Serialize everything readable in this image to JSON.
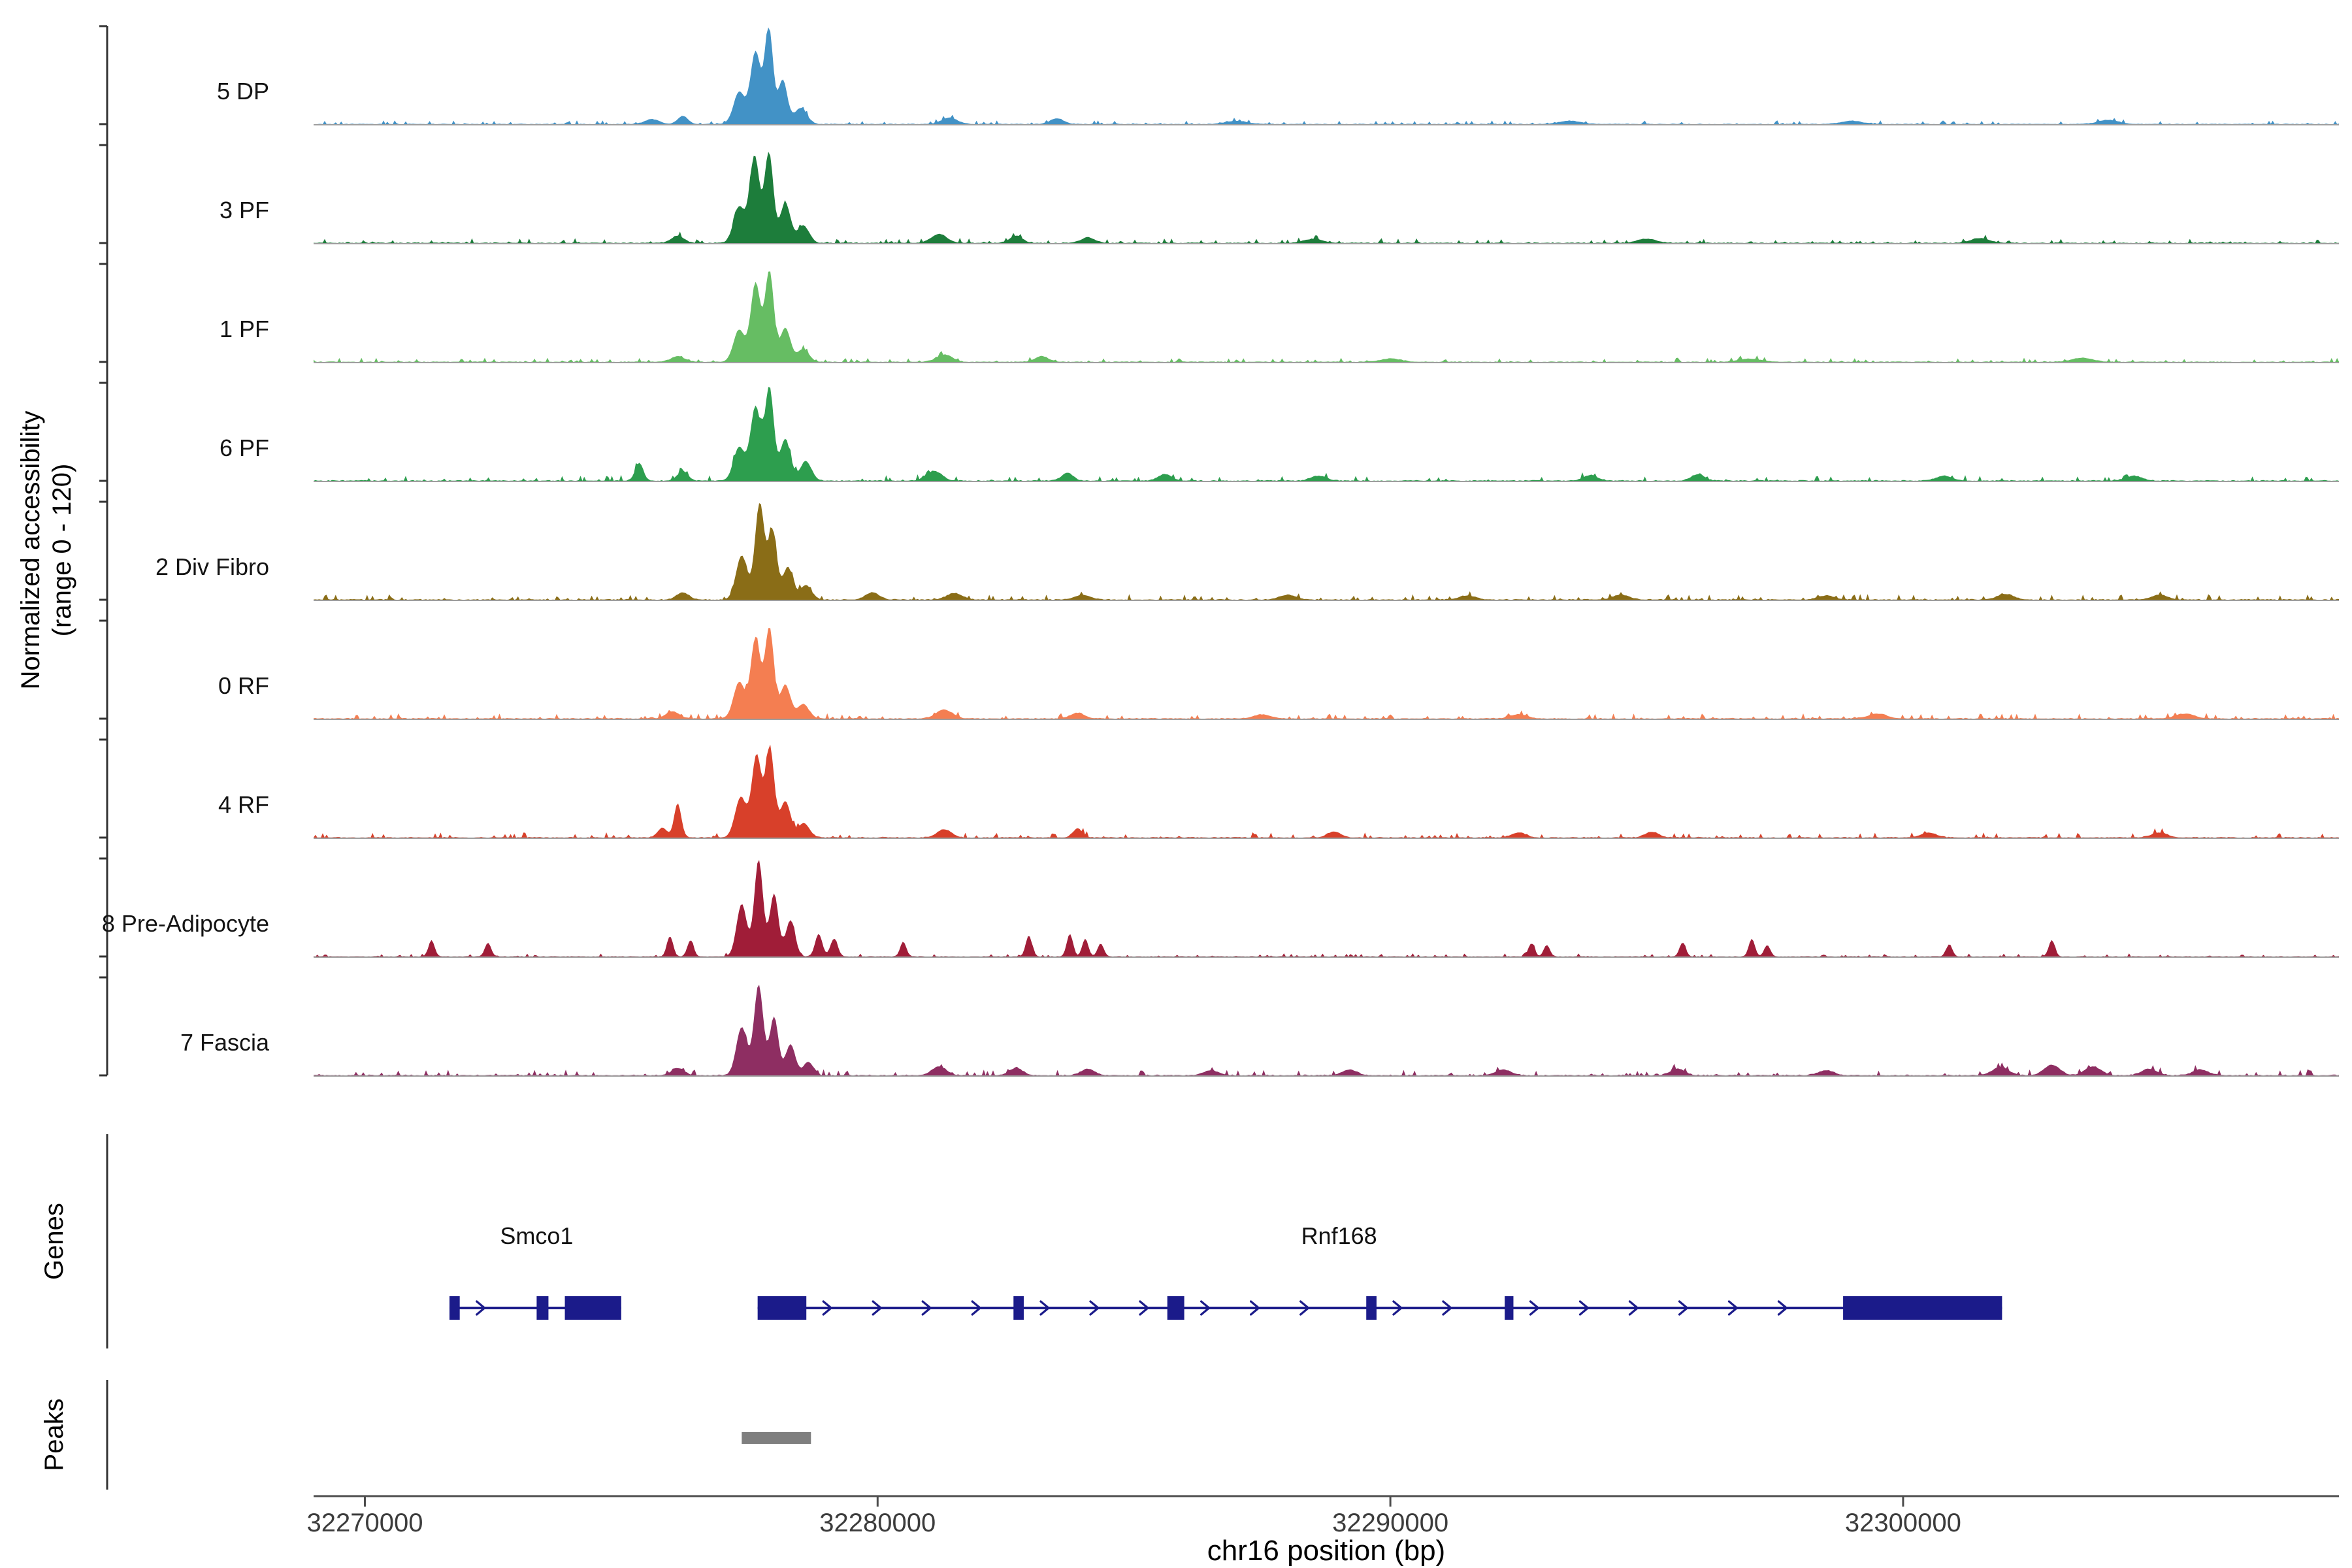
{
  "figure": {
    "ylabel_line1": "Normalized accessibility",
    "ylabel_line2": "(range 0 - 120)",
    "genes_label": "Genes",
    "peaks_label": "Peaks",
    "xlabel": "chr16 position (bp)"
  },
  "chart_data": {
    "type": "area",
    "description": "Genome-browser style normalized chromatin accessibility coverage tracks per cell cluster over chr16, with gene models and a called peak region",
    "xlabel": "chr16 position (bp)",
    "ylabel": "Normalized accessibility (range 0 - 120)",
    "x_domain": [
      32269000,
      32308500
    ],
    "x_ticks": [
      32270000,
      32280000,
      32290000,
      32300000
    ],
    "y_range_per_track": [
      0,
      120
    ],
    "grid": false,
    "legend": "track labels at left",
    "tracks": [
      {
        "label": "5 DP",
        "color": "#4292c6",
        "noise": 2.2,
        "peaks": [
          [
            32277300,
            40,
            110
          ],
          [
            32277620,
            90,
            100
          ],
          [
            32277880,
            118,
            80
          ],
          [
            32278150,
            55,
            90
          ],
          [
            32278500,
            20,
            120
          ],
          [
            32276200,
            10,
            100
          ],
          [
            32275600,
            6,
            140
          ],
          [
            32281400,
            8,
            150
          ],
          [
            32283500,
            7,
            130
          ],
          [
            32287000,
            4,
            200
          ],
          [
            32293500,
            4,
            200
          ],
          [
            32299000,
            4,
            200
          ],
          [
            32304000,
            5,
            200
          ]
        ]
      },
      {
        "label": "3 PF",
        "color": "#1d7d3b",
        "noise": 2.8,
        "peaks": [
          [
            32277300,
            45,
            110
          ],
          [
            32277600,
            108,
            95
          ],
          [
            32277880,
            112,
            85
          ],
          [
            32278200,
            50,
            100
          ],
          [
            32278550,
            22,
            110
          ],
          [
            32276100,
            9,
            120
          ],
          [
            32281200,
            11,
            150
          ],
          [
            32282700,
            9,
            120
          ],
          [
            32284100,
            7,
            130
          ],
          [
            32288500,
            5,
            180
          ],
          [
            32295000,
            5,
            180
          ],
          [
            32301500,
            6,
            180
          ]
        ]
      },
      {
        "label": "1 PF",
        "color": "#66bd63",
        "noise": 2.4,
        "peaks": [
          [
            32277300,
            40,
            110
          ],
          [
            32277620,
            98,
            95
          ],
          [
            32277890,
            112,
            85
          ],
          [
            32278200,
            42,
            100
          ],
          [
            32278550,
            16,
            110
          ],
          [
            32276100,
            7,
            130
          ],
          [
            32281300,
            9,
            150
          ],
          [
            32283200,
            7,
            130
          ],
          [
            32290000,
            4,
            200
          ],
          [
            32297000,
            4,
            200
          ],
          [
            32303500,
            5,
            200
          ]
        ]
      },
      {
        "label": "6 PF",
        "color": "#2d9e4e",
        "noise": 3.4,
        "peaks": [
          [
            32277300,
            42,
            110
          ],
          [
            32277620,
            92,
            100
          ],
          [
            32277890,
            115,
            85
          ],
          [
            32278200,
            52,
            100
          ],
          [
            32278600,
            24,
            110
          ],
          [
            32275350,
            22,
            80
          ],
          [
            32276200,
            12,
            100
          ],
          [
            32281100,
            12,
            150
          ],
          [
            32283700,
            10,
            110
          ],
          [
            32285600,
            8,
            130
          ],
          [
            32288600,
            6,
            150
          ],
          [
            32293900,
            7,
            140
          ],
          [
            32296000,
            8,
            130
          ],
          [
            32300800,
            6,
            160
          ],
          [
            32304500,
            6,
            160
          ]
        ]
      },
      {
        "label": "2 Div Fibro",
        "color": "#8a6d17",
        "noise": 3.2,
        "peaks": [
          [
            32277350,
            55,
            110
          ],
          [
            32277700,
            120,
            90
          ],
          [
            32277950,
            85,
            85
          ],
          [
            32278250,
            40,
            100
          ],
          [
            32278600,
            18,
            110
          ],
          [
            32276200,
            9,
            120
          ],
          [
            32279900,
            9,
            130
          ],
          [
            32281500,
            8,
            150
          ],
          [
            32284000,
            6,
            150
          ],
          [
            32288000,
            6,
            160
          ],
          [
            32291500,
            5,
            160
          ],
          [
            32294500,
            6,
            160
          ],
          [
            32298500,
            5,
            160
          ],
          [
            32302000,
            7,
            160
          ],
          [
            32305000,
            6,
            160
          ]
        ]
      },
      {
        "label": "0 RF",
        "color": "#f47e51",
        "noise": 3.0,
        "peaks": [
          [
            32277300,
            45,
            110
          ],
          [
            32277620,
            100,
            95
          ],
          [
            32277890,
            112,
            85
          ],
          [
            32278200,
            42,
            100
          ],
          [
            32278550,
            18,
            110
          ],
          [
            32276000,
            9,
            130
          ],
          [
            32281300,
            11,
            160
          ],
          [
            32283900,
            7,
            140
          ],
          [
            32287500,
            5,
            170
          ],
          [
            32292500,
            5,
            170
          ],
          [
            32299500,
            6,
            180
          ],
          [
            32305500,
            6,
            180
          ]
        ]
      },
      {
        "label": "4 RF",
        "color": "#d8402a",
        "noise": 3.0,
        "peaks": [
          [
            32277330,
            50,
            110
          ],
          [
            32277640,
            102,
            95
          ],
          [
            32277900,
            110,
            85
          ],
          [
            32278200,
            45,
            100
          ],
          [
            32278560,
            18,
            110
          ],
          [
            32276100,
            42,
            70
          ],
          [
            32275800,
            12,
            90
          ],
          [
            32281300,
            10,
            140
          ],
          [
            32283900,
            11,
            90
          ],
          [
            32288900,
            7,
            130
          ],
          [
            32292500,
            6,
            140
          ],
          [
            32295100,
            7,
            130
          ],
          [
            32300500,
            6,
            150
          ],
          [
            32305000,
            6,
            150
          ]
        ]
      },
      {
        "label": "8 Pre-Adipocyte",
        "color": "#a01d38",
        "noise": 1.8,
        "peaks": [
          [
            32277350,
            65,
            100
          ],
          [
            32277680,
            120,
            85
          ],
          [
            32277980,
            78,
            85
          ],
          [
            32278300,
            45,
            90
          ],
          [
            32278850,
            28,
            70
          ],
          [
            32279150,
            22,
            70
          ],
          [
            32271300,
            20,
            60
          ],
          [
            32272400,
            17,
            60
          ],
          [
            32275950,
            25,
            60
          ],
          [
            32276350,
            20,
            60
          ],
          [
            32280500,
            18,
            60
          ],
          [
            32282950,
            26,
            60
          ],
          [
            32283750,
            28,
            60
          ],
          [
            32284050,
            22,
            60
          ],
          [
            32284350,
            16,
            60
          ],
          [
            32292750,
            16,
            60
          ],
          [
            32293050,
            14,
            60
          ],
          [
            32295700,
            17,
            60
          ],
          [
            32297050,
            22,
            60
          ],
          [
            32297350,
            14,
            60
          ],
          [
            32300900,
            15,
            60
          ],
          [
            32302900,
            20,
            60
          ]
        ]
      },
      {
        "label": "7 Fascia",
        "color": "#8e2e62",
        "noise": 3.4,
        "peaks": [
          [
            32277350,
            60,
            105
          ],
          [
            32277680,
            112,
            90
          ],
          [
            32277980,
            72,
            85
          ],
          [
            32278300,
            38,
            95
          ],
          [
            32278650,
            16,
            100
          ],
          [
            32276100,
            9,
            120
          ],
          [
            32281200,
            11,
            140
          ],
          [
            32282700,
            9,
            130
          ],
          [
            32284100,
            8,
            130
          ],
          [
            32286500,
            6,
            150
          ],
          [
            32289200,
            7,
            140
          ],
          [
            32292200,
            7,
            150
          ],
          [
            32295600,
            8,
            140
          ],
          [
            32298500,
            6,
            150
          ],
          [
            32301900,
            10,
            160
          ],
          [
            32302900,
            13,
            150
          ],
          [
            32303700,
            11,
            150
          ],
          [
            32304800,
            8,
            150
          ],
          [
            32305800,
            7,
            150
          ]
        ]
      }
    ],
    "genes": {
      "color": "#1b1b8a",
      "items": [
        {
          "name": "Smco1",
          "strand": "+",
          "start": 32271650,
          "end": 32275000,
          "label_bp": 32273350,
          "exons": [
            [
              32271650,
              32271850
            ],
            [
              32273350,
              32273580
            ],
            [
              32273900,
              32275000
            ]
          ]
        },
        {
          "name": "Rnf168",
          "strand": "+",
          "start": 32277660,
          "end": 32301930,
          "label_bp": 32289000,
          "exons": [
            [
              32277660,
              32278610
            ],
            [
              32282650,
              32282850
            ],
            [
              32285650,
              32285980
            ],
            [
              32289530,
              32289730
            ],
            [
              32292230,
              32292400
            ],
            [
              32298830,
              32301930
            ]
          ]
        }
      ]
    },
    "peaks_track": {
      "color": "#7f7f7f",
      "regions": [
        [
          32277350,
          32278700
        ]
      ]
    }
  }
}
